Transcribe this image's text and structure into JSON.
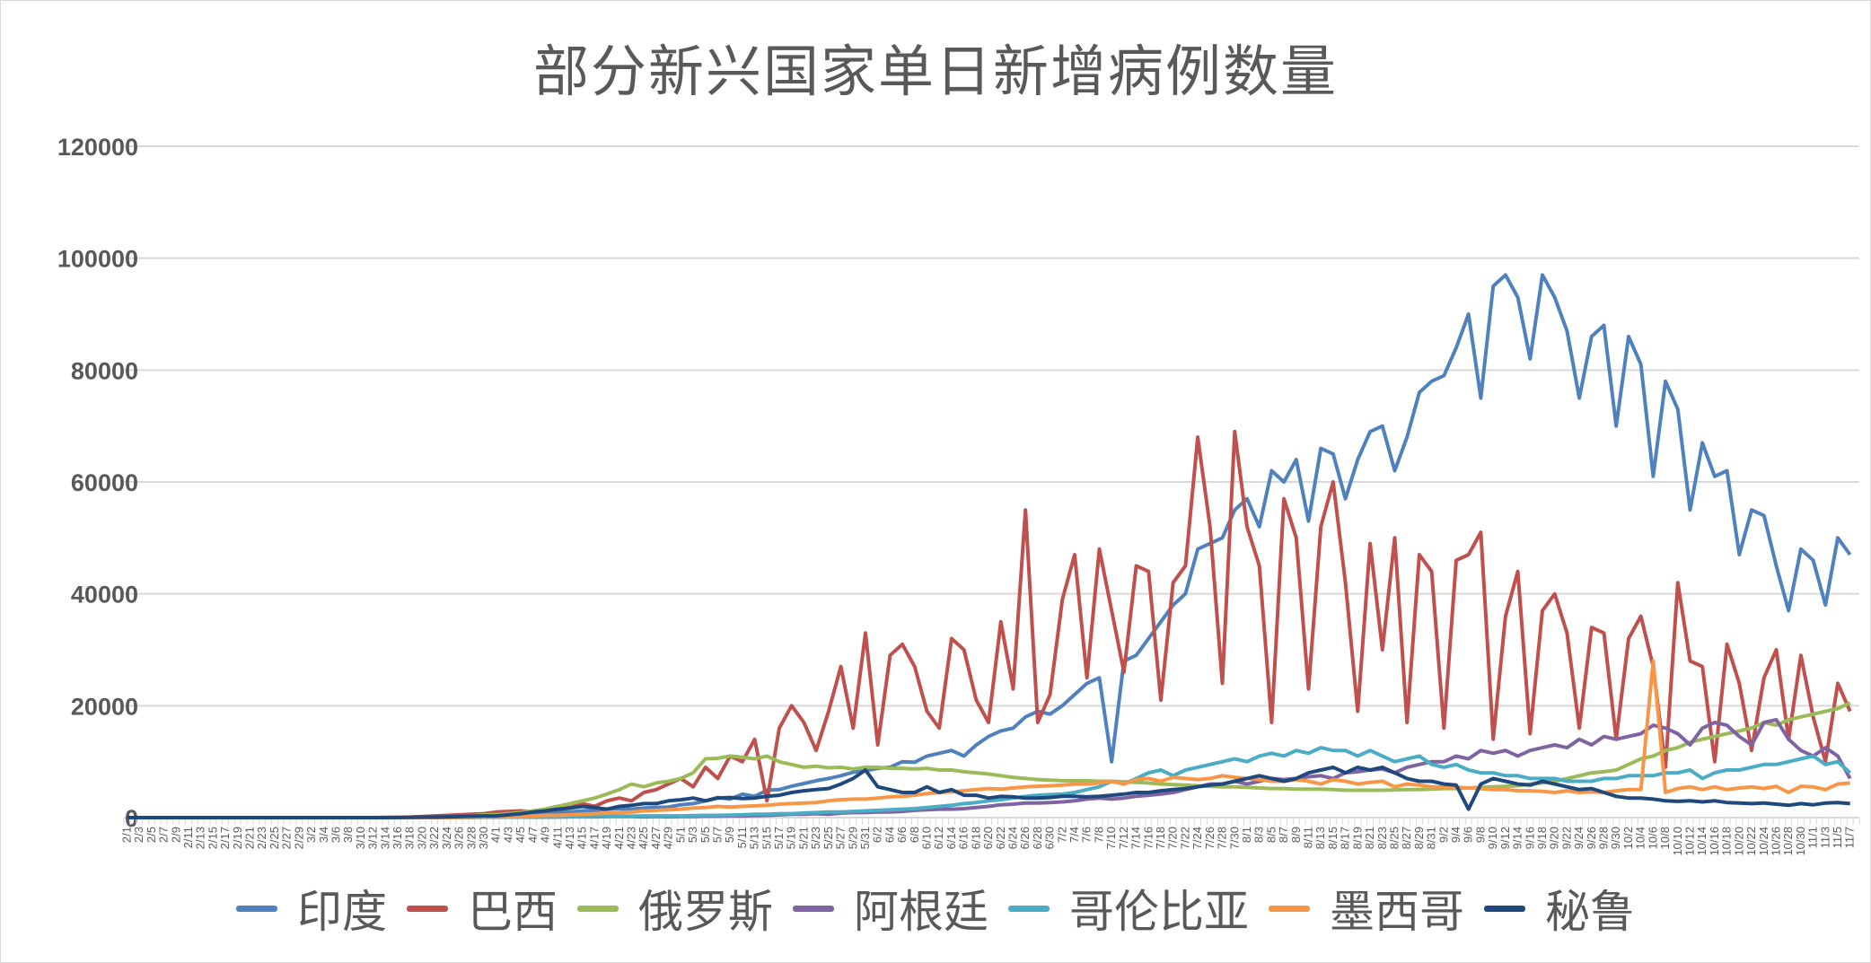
{
  "chart_data": {
    "type": "line",
    "title": "部分新兴国家单日新增病例数量",
    "xlabel": "",
    "ylabel": "",
    "ylim": [
      0,
      120000
    ],
    "yticks": [
      "0",
      "20000",
      "40000",
      "60000",
      "80000",
      "100000",
      "120000"
    ],
    "grid": "horizontal",
    "legend": "bottom",
    "categories": [
      "2/1",
      "2/3",
      "2/5",
      "2/7",
      "2/9",
      "2/11",
      "2/13",
      "2/15",
      "2/17",
      "2/19",
      "2/21",
      "2/23",
      "2/25",
      "2/27",
      "2/29",
      "3/2",
      "3/4",
      "3/6",
      "3/8",
      "3/10",
      "3/12",
      "3/14",
      "3/16",
      "3/18",
      "3/20",
      "3/22",
      "3/24",
      "3/26",
      "3/28",
      "3/30",
      "4/1",
      "4/3",
      "4/5",
      "4/7",
      "4/9",
      "4/11",
      "4/13",
      "4/15",
      "4/17",
      "4/19",
      "4/21",
      "4/23",
      "4/25",
      "4/27",
      "4/29",
      "5/1",
      "5/3",
      "5/5",
      "5/7",
      "5/9",
      "5/11",
      "5/13",
      "5/15",
      "5/17",
      "5/19",
      "5/21",
      "5/23",
      "5/25",
      "5/27",
      "5/29",
      "5/31",
      "6/2",
      "6/4",
      "6/6",
      "6/8",
      "6/10",
      "6/12",
      "6/14",
      "6/16",
      "6/18",
      "6/20",
      "6/22",
      "6/24",
      "6/26",
      "6/28",
      "6/30",
      "7/2",
      "7/4",
      "7/6",
      "7/8",
      "7/10",
      "7/12",
      "7/14",
      "7/16",
      "7/18",
      "7/20",
      "7/22",
      "7/24",
      "7/26",
      "7/28",
      "7/30",
      "8/1",
      "8/3",
      "8/5",
      "8/7",
      "8/9",
      "8/11",
      "8/13",
      "8/15",
      "8/17",
      "8/19",
      "8/21",
      "8/23",
      "8/25",
      "8/27",
      "8/29",
      "8/31",
      "9/2",
      "9/4",
      "9/6",
      "9/8",
      "9/10",
      "9/12",
      "9/14",
      "9/16",
      "9/18",
      "9/20",
      "9/22",
      "9/24",
      "9/26",
      "9/28",
      "9/30",
      "10/2",
      "10/4",
      "10/6",
      "10/8",
      "10/10",
      "10/12",
      "10/14",
      "10/16",
      "10/18",
      "10/20",
      "10/22",
      "10/24",
      "10/26",
      "10/28",
      "10/30",
      "11/1",
      "11/3",
      "11/5",
      "11/7"
    ],
    "series": [
      {
        "name": "印度",
        "color": "#4F81BD",
        "values": [
          0,
          0,
          0,
          0,
          0,
          0,
          0,
          0,
          0,
          0,
          0,
          0,
          0,
          0,
          0,
          0,
          0,
          0,
          0,
          0,
          0,
          10,
          20,
          30,
          50,
          60,
          80,
          90,
          100,
          150,
          300,
          500,
          600,
          800,
          900,
          1000,
          1000,
          1200,
          1300,
          1500,
          1600,
          1500,
          1700,
          1800,
          1900,
          2300,
          2500,
          3000,
          3600,
          3300,
          4200,
          3800,
          4900,
          5000,
          5600,
          6100,
          6600,
          7000,
          7500,
          8100,
          8400,
          8800,
          9000,
          10000,
          9900,
          11000,
          11500,
          12000,
          11000,
          13000,
          14500,
          15500,
          16000,
          18000,
          19000,
          18500,
          20000,
          22000,
          24000,
          25000,
          10000,
          28000,
          29000,
          32000,
          35000,
          38000,
          40000,
          48000,
          49000,
          50000,
          55000,
          57000,
          52000,
          62000,
          60000,
          64000,
          53000,
          66000,
          65000,
          57000,
          64000,
          69000,
          70000,
          62000,
          68000,
          76000,
          78000,
          79000,
          84000,
          90000,
          75000,
          95000,
          97000,
          93000,
          82000,
          97000,
          93000,
          87000,
          75000,
          86000,
          88000,
          70000,
          86000,
          81000,
          61000,
          78000,
          73000,
          55000,
          67000,
          61000,
          62000,
          47000,
          55000,
          54000,
          45000,
          37000,
          48000,
          46000,
          38000,
          50000,
          47000
        ]
      },
      {
        "name": "巴西",
        "color": "#C0504D",
        "values": [
          0,
          0,
          0,
          0,
          0,
          0,
          0,
          0,
          0,
          0,
          0,
          0,
          0,
          0,
          0,
          0,
          0,
          0,
          0,
          0,
          0,
          20,
          50,
          100,
          200,
          300,
          400,
          500,
          600,
          700,
          1000,
          1100,
          1200,
          1000,
          1500,
          2000,
          1800,
          2500,
          2000,
          3000,
          3500,
          3000,
          4500,
          5000,
          6000,
          7000,
          5500,
          9000,
          7000,
          11000,
          10000,
          14000,
          3000,
          16000,
          20000,
          17000,
          12000,
          19000,
          27000,
          16000,
          33000,
          13000,
          29000,
          31000,
          27000,
          19000,
          16000,
          32000,
          30000,
          21000,
          17000,
          35000,
          23000,
          55000,
          17000,
          22000,
          39000,
          47000,
          25000,
          48000,
          37000,
          26000,
          45000,
          44000,
          21000,
          42000,
          45000,
          68000,
          52000,
          24000,
          69000,
          52000,
          45000,
          17000,
          57000,
          50000,
          23000,
          52000,
          60000,
          42000,
          19000,
          49000,
          30000,
          50000,
          17000,
          47000,
          44000,
          16000,
          46000,
          47000,
          51000,
          14000,
          36000,
          44000,
          15000,
          37000,
          40000,
          33000,
          16000,
          34000,
          33000,
          14000,
          32000,
          36000,
          27000,
          9000,
          42000,
          28000,
          27000,
          10000,
          31000,
          24000,
          12000,
          25000,
          30000,
          14000,
          29000,
          18000,
          10000,
          24000,
          19000
        ]
      },
      {
        "name": "俄罗斯",
        "color": "#9BBB59",
        "values": [
          0,
          0,
          0,
          0,
          0,
          0,
          0,
          0,
          0,
          0,
          0,
          0,
          0,
          0,
          0,
          0,
          0,
          0,
          0,
          0,
          0,
          0,
          10,
          20,
          40,
          60,
          100,
          200,
          300,
          500,
          500,
          700,
          900,
          1200,
          1500,
          2000,
          2500,
          3000,
          3500,
          4200,
          5000,
          6000,
          5500,
          6200,
          6500,
          7000,
          8000,
          10500,
          10600,
          11000,
          10800,
          10500,
          11000,
          10000,
          9500,
          9000,
          9200,
          8900,
          9000,
          8700,
          9000,
          9000,
          8800,
          8800,
          8700,
          8800,
          8500,
          8500,
          8200,
          8000,
          7800,
          7500,
          7200,
          7000,
          6800,
          6700,
          6600,
          6600,
          6600,
          6500,
          6500,
          6400,
          6300,
          6200,
          6000,
          5900,
          5800,
          5700,
          5600,
          5500,
          5500,
          5400,
          5300,
          5200,
          5200,
          5100,
          5100,
          5100,
          5000,
          4900,
          4900,
          4900,
          4900,
          4950,
          5000,
          5000,
          5100,
          5200,
          5200,
          5300,
          5400,
          5500,
          5600,
          5700,
          6000,
          6200,
          6500,
          7000,
          7500,
          8000,
          8200,
          8500,
          9500,
          10500,
          11000,
          12000,
          12500,
          13500,
          14000,
          14500,
          15000,
          15500,
          16000,
          17000,
          16500,
          17500,
          18000,
          18500,
          19000,
          19500,
          20500
        ]
      },
      {
        "name": "阿根廷",
        "color": "#8064A2",
        "values": [
          0,
          0,
          0,
          0,
          0,
          0,
          0,
          0,
          0,
          0,
          0,
          0,
          0,
          0,
          0,
          0,
          0,
          0,
          0,
          0,
          0,
          0,
          0,
          0,
          0,
          0,
          0,
          20,
          50,
          100,
          100,
          100,
          100,
          100,
          100,
          100,
          150,
          150,
          150,
          200,
          200,
          200,
          150,
          200,
          150,
          200,
          200,
          250,
          250,
          300,
          300,
          350,
          400,
          500,
          600,
          600,
          700,
          600,
          800,
          900,
          900,
          1000,
          1000,
          1100,
          1300,
          1400,
          1500,
          1500,
          1600,
          1800,
          2000,
          2300,
          2400,
          2600,
          2600,
          2700,
          2800,
          3000,
          3300,
          3500,
          3300,
          3500,
          3800,
          4000,
          4200,
          4500,
          5000,
          5500,
          6000,
          6000,
          6500,
          6000,
          6500,
          7000,
          6800,
          7000,
          7300,
          7500,
          7000,
          8000,
          8200,
          8500,
          8700,
          8000,
          9000,
          9500,
          10000,
          10000,
          11000,
          10500,
          12000,
          11500,
          12000,
          11000,
          12000,
          12500,
          13000,
          12500,
          14000,
          13000,
          14500,
          14000,
          14500,
          15000,
          16500,
          16000,
          15000,
          13000,
          16000,
          17000,
          16500,
          14500,
          13000,
          17000,
          17500,
          14000,
          12000,
          11000,
          12500,
          11000,
          7000
        ]
      },
      {
        "name": "哥伦比亚",
        "color": "#4BACC6",
        "values": [
          0,
          0,
          0,
          0,
          0,
          0,
          0,
          0,
          0,
          0,
          0,
          0,
          0,
          0,
          0,
          0,
          0,
          0,
          0,
          0,
          0,
          0,
          0,
          0,
          0,
          0,
          0,
          0,
          20,
          40,
          50,
          80,
          100,
          100,
          100,
          150,
          150,
          200,
          200,
          200,
          250,
          250,
          300,
          300,
          300,
          300,
          350,
          400,
          400,
          450,
          500,
          600,
          600,
          700,
          700,
          800,
          900,
          1000,
          1000,
          1100,
          1200,
          1300,
          1400,
          1500,
          1600,
          1800,
          2000,
          2200,
          2500,
          2700,
          3000,
          3200,
          3500,
          3800,
          4000,
          4100,
          4200,
          4500,
          5000,
          5500,
          6500,
          6000,
          7000,
          8000,
          8500,
          7500,
          8500,
          9000,
          9500,
          10000,
          10500,
          10000,
          11000,
          11500,
          11000,
          12000,
          11500,
          12500,
          12000,
          12000,
          11000,
          12000,
          11000,
          10000,
          10500,
          11000,
          9500,
          9000,
          9500,
          8500,
          8000,
          8000,
          7500,
          7500,
          7000,
          7000,
          7000,
          6500,
          6500,
          6500,
          7000,
          7000,
          7500,
          7500,
          7500,
          8000,
          8000,
          8500,
          7000,
          8000,
          8500,
          8500,
          9000,
          9500,
          9500,
          10000,
          10500,
          11000,
          9500,
          10000,
          8000
        ]
      },
      {
        "name": "墨西哥",
        "color": "#F79646",
        "values": [
          0,
          0,
          0,
          0,
          0,
          0,
          0,
          0,
          0,
          0,
          0,
          0,
          0,
          0,
          0,
          0,
          0,
          0,
          0,
          0,
          0,
          0,
          0,
          0,
          0,
          10,
          20,
          40,
          60,
          100,
          100,
          150,
          200,
          300,
          400,
          400,
          500,
          600,
          700,
          800,
          900,
          1000,
          1200,
          1300,
          1400,
          1500,
          1700,
          1800,
          2000,
          1900,
          2000,
          2100,
          2200,
          2400,
          2500,
          2600,
          2700,
          3000,
          3200,
          3300,
          3300,
          3500,
          3700,
          3800,
          4000,
          4300,
          4500,
          4600,
          4800,
          5000,
          5200,
          5100,
          5300,
          5500,
          5600,
          5700,
          5800,
          6000,
          6000,
          6200,
          6500,
          6000,
          6800,
          7000,
          6500,
          7200,
          7000,
          6800,
          7000,
          7500,
          7200,
          7000,
          6800,
          6500,
          6500,
          6800,
          6500,
          6000,
          6800,
          6500,
          6000,
          6300,
          6500,
          5500,
          6000,
          5800,
          5500,
          5500,
          5400,
          5300,
          5200,
          5000,
          5000,
          4800,
          4800,
          4700,
          4500,
          4800,
          4500,
          4600,
          4500,
          4800,
          5000,
          5000,
          28000,
          4500,
          5200,
          5500,
          5000,
          5500,
          5000,
          5300,
          5500,
          5200,
          5600,
          4500,
          5600,
          5500,
          5000,
          6000,
          6200
        ]
      },
      {
        "name": "秘鲁",
        "color": "#1F497D",
        "values": [
          0,
          0,
          0,
          0,
          0,
          0,
          0,
          0,
          0,
          0,
          0,
          0,
          0,
          0,
          0,
          0,
          0,
          0,
          0,
          0,
          0,
          0,
          20,
          50,
          80,
          100,
          150,
          200,
          250,
          300,
          300,
          500,
          700,
          1000,
          1200,
          1500,
          1700,
          2000,
          1800,
          1500,
          2000,
          2200,
          2500,
          2500,
          3000,
          3200,
          3500,
          3000,
          3500,
          3600,
          3400,
          3500,
          3800,
          4000,
          4500,
          4800,
          5000,
          5200,
          6000,
          7000,
          8500,
          5500,
          5000,
          4500,
          4500,
          5500,
          4500,
          5000,
          4000,
          4000,
          3500,
          3800,
          3700,
          3500,
          3500,
          3600,
          3800,
          3800,
          3700,
          3800,
          4000,
          4200,
          4500,
          4500,
          4800,
          5000,
          5200,
          5500,
          5800,
          6000,
          6500,
          7000,
          7500,
          7000,
          6500,
          7000,
          8000,
          8500,
          9000,
          8000,
          9000,
          8500,
          9000,
          8000,
          7000,
          6500,
          6500,
          6000,
          5800,
          1500,
          6000,
          7000,
          6500,
          6000,
          5800,
          6500,
          6000,
          5500,
          5000,
          5200,
          4500,
          3800,
          3500,
          3500,
          3300,
          3000,
          2900,
          3000,
          2800,
          3000,
          2700,
          2600,
          2500,
          2600,
          2400,
          2200,
          2500,
          2300,
          2600,
          2700,
          2500
        ]
      }
    ]
  }
}
